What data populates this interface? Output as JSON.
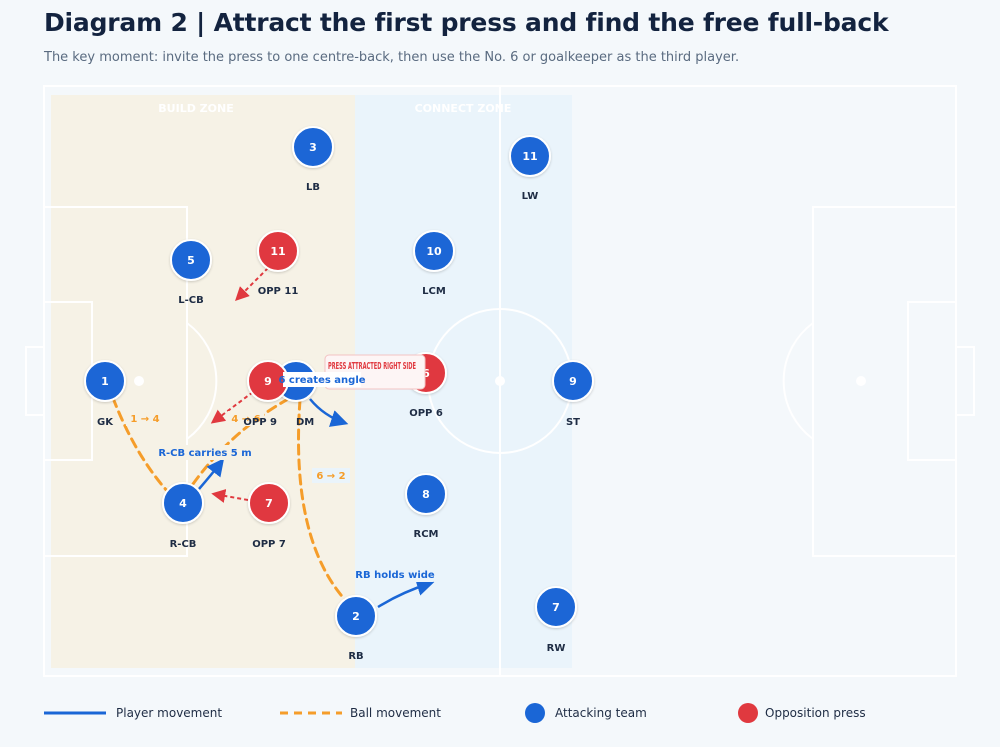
{
  "title": "Diagram 2 | Attract the first press and find the free full-back",
  "subtitle": "The key moment: invite the press to one centre-back, then use the No. 6 or goalkeeper as the third player.",
  "zones": {
    "build": "BUILD ZONE",
    "connect": "CONNECT ZONE"
  },
  "colors": {
    "attack": "#1a66d6",
    "press": "#e0393f",
    "ball": "#f59d2a",
    "move": "#1a66d6",
    "build_zone": "#f6f2e6",
    "connect_zone": "#eaf4fb"
  },
  "players": {
    "gk": {
      "num": "1",
      "label": "GK"
    },
    "rcb": {
      "num": "4",
      "label": "R-CB"
    },
    "lcb": {
      "num": "5",
      "label": "L-CB"
    },
    "lb": {
      "num": "3",
      "label": "LB"
    },
    "dm": {
      "num": "6",
      "label": "DM"
    },
    "rb": {
      "num": "2",
      "label": "RB"
    },
    "lcm": {
      "num": "10",
      "label": "LCM"
    },
    "rcm": {
      "num": "8",
      "label": "RCM"
    },
    "lw": {
      "num": "11",
      "label": "LW"
    },
    "st": {
      "num": "9",
      "label": "ST"
    },
    "rw": {
      "num": "7",
      "label": "RW"
    }
  },
  "opponents": {
    "opp11": {
      "num": "11",
      "label": "OPP 11"
    },
    "opp9": {
      "num": "9",
      "label": "OPP 9"
    },
    "opp7": {
      "num": "7",
      "label": "OPP 7"
    },
    "opp6": {
      "num": "6",
      "label": "OPP 6"
    }
  },
  "annotations": {
    "pass_1_4": "1 → 4",
    "pass_4_6": "4 → 6",
    "pass_6_2": "6 → 2",
    "rcb_carry": "R-CB carries 5 m",
    "rb_wide": "RB holds wide",
    "dm_angle": "6 creates angle",
    "press_callout": "PRESS ATTRACTED RIGHT SIDE"
  },
  "legend": {
    "player_movement": "Player movement",
    "ball_movement": "Ball movement",
    "attacking_team": "Attacking team",
    "opposition_press": "Opposition press"
  }
}
